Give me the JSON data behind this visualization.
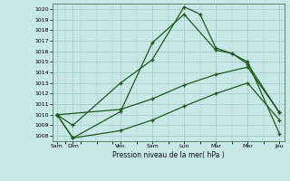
{
  "background_color": "#c8e8e8",
  "grid_color": "#a0c8c8",
  "line_color": "#1a5c1a",
  "x_labels": [
    "Sam",
    "Dim",
    "Ven",
    "Sam",
    "Lun",
    "Mar",
    "Mer",
    "Jeu"
  ],
  "xlabel": "Pression niveau de la mer( hPa )",
  "ylim": [
    1007.5,
    1020.5
  ],
  "yticks": [
    1008,
    1009,
    1010,
    1011,
    1012,
    1013,
    1014,
    1015,
    1016,
    1017,
    1018,
    1019,
    1020
  ],
  "xlim": [
    -0.15,
    7.15
  ],
  "series": [
    {
      "x": [
        0,
        0.5,
        2,
        3,
        4,
        4.5,
        5,
        5.5,
        6,
        7
      ],
      "y": [
        1010.0,
        1009.0,
        1013.0,
        1015.2,
        1020.2,
        1019.5,
        1016.3,
        1015.8,
        1015.0,
        1008.2
      ]
    },
    {
      "x": [
        0,
        0.5,
        2,
        3,
        4,
        5,
        5.5,
        6,
        7
      ],
      "y": [
        1010.0,
        1007.8,
        1010.3,
        1016.8,
        1019.5,
        1016.1,
        1015.8,
        1014.8,
        1010.2
      ]
    },
    {
      "x": [
        0,
        2,
        3,
        4,
        5,
        6,
        7
      ],
      "y": [
        1010.0,
        1010.5,
        1011.5,
        1012.8,
        1013.8,
        1014.5,
        1010.2
      ]
    },
    {
      "x": [
        0,
        0.5,
        2,
        3,
        4,
        5,
        6,
        7
      ],
      "y": [
        1010.0,
        1007.8,
        1008.5,
        1009.5,
        1010.8,
        1012.0,
        1013.0,
        1009.5
      ]
    }
  ]
}
